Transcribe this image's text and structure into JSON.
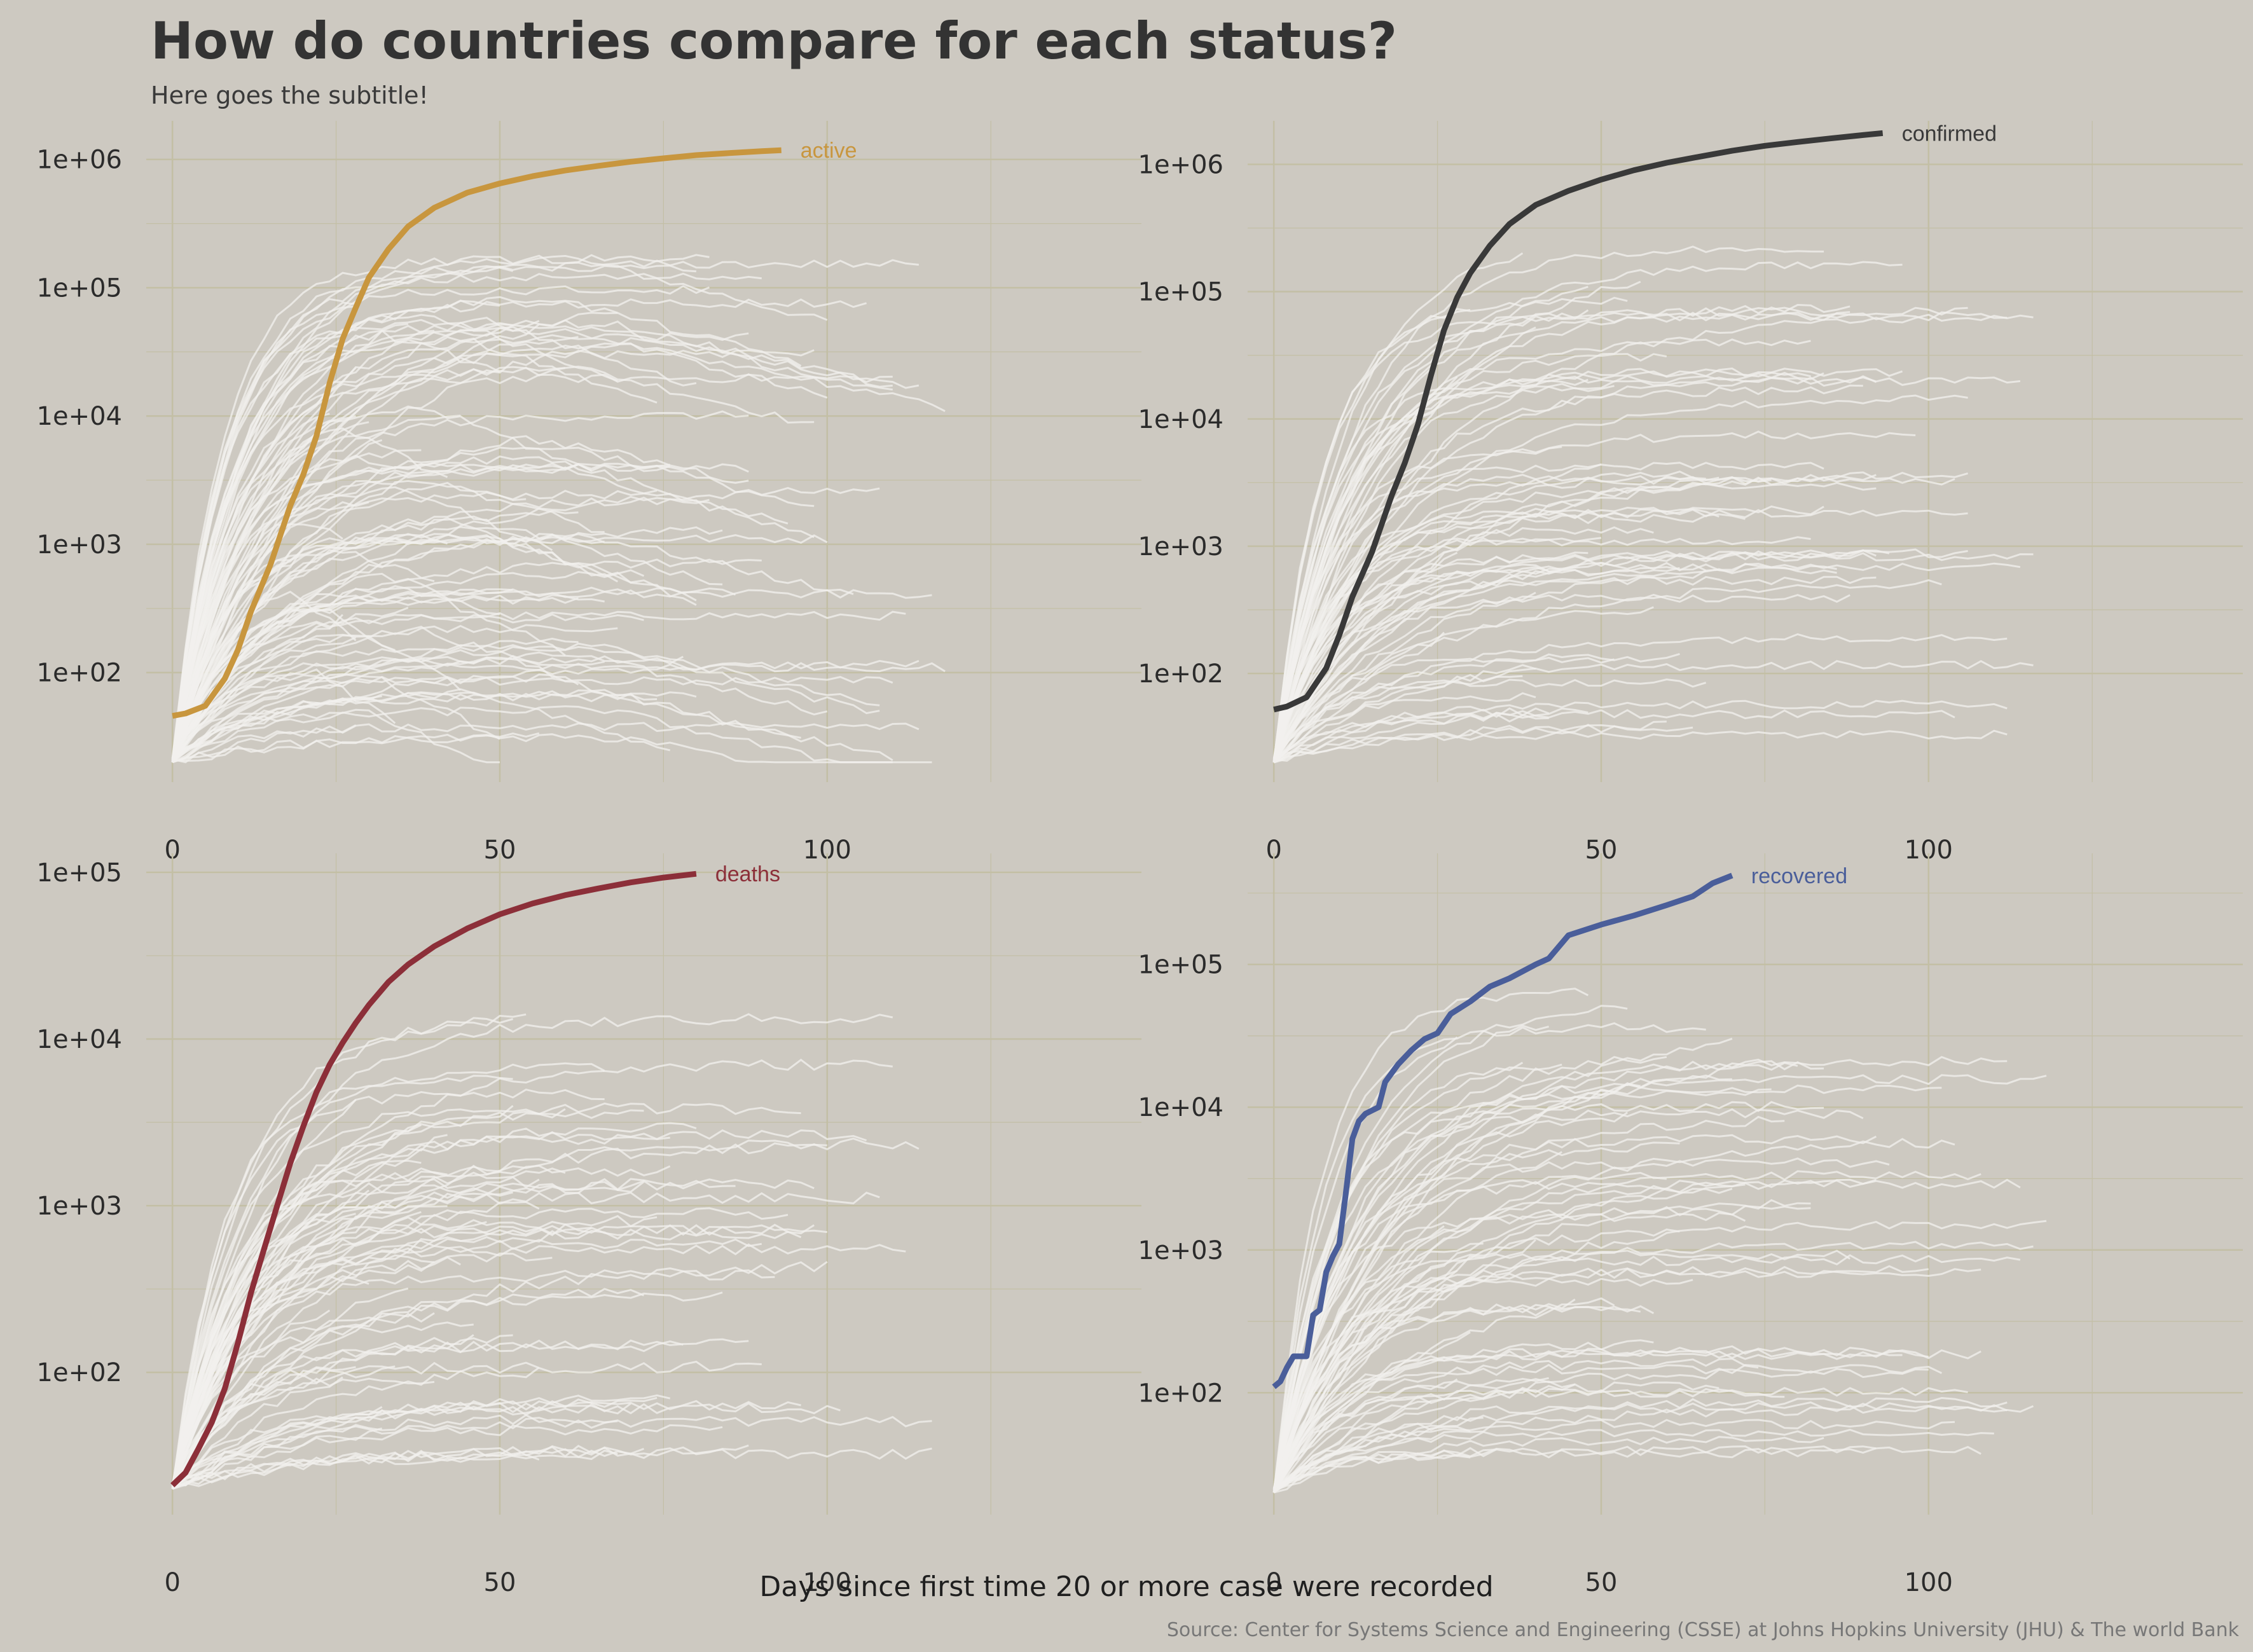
{
  "title": "How do countries compare for each status?",
  "subtitle": "Here goes the subtitle!",
  "xlabel": "Days since first time 20 or more case were recorded",
  "caption": "Source: Center for Systems Science and Engineering (CSSE) at Johns Hopkins University (JHU) & The world Bank",
  "colors": {
    "background": "#cdc9c1",
    "grid": "#c3bfa5",
    "background_lines": "#f2f0ee",
    "active": "#c8963e",
    "confirmed": "#393939",
    "deaths": "#8c2f39",
    "recovered": "#4a5e9a"
  },
  "chart_data": [
    {
      "type": "line",
      "panel": "active",
      "x_ticks": [
        0,
        50,
        100
      ],
      "xlim": [
        -4,
        148
      ],
      "y_scale": "log10",
      "y_ticks": [
        100,
        1000,
        10000,
        100000,
        1000000
      ],
      "y_tick_labels": [
        "1e+02",
        "1e+03",
        "1e+04",
        "1e+05",
        "1e+06"
      ],
      "ylim": [
        14,
        2000000
      ],
      "highlight": {
        "name": "active",
        "color": "#c8963e",
        "x": [
          0,
          2,
          5,
          8,
          10,
          12,
          15,
          18,
          20,
          22,
          24,
          26,
          28,
          30,
          33,
          36,
          40,
          45,
          50,
          55,
          60,
          65,
          70,
          75,
          80,
          85,
          90,
          93
        ],
        "y": [
          46,
          48,
          55,
          90,
          150,
          300,
          700,
          2000,
          3500,
          7000,
          18000,
          40000,
          70000,
          120000,
          200000,
          300000,
          420000,
          550000,
          650000,
          740000,
          820000,
          890000,
          960000,
          1020000,
          1080000,
          1120000,
          1160000,
          1180000
        ]
      }
    },
    {
      "type": "line",
      "panel": "confirmed",
      "x_ticks": [
        0,
        50,
        100
      ],
      "xlim": [
        -4,
        148
      ],
      "y_scale": "log10",
      "y_ticks": [
        100,
        1000,
        10000,
        100000,
        1000000
      ],
      "y_tick_labels": [
        "1e+02",
        "1e+03",
        "1e+04",
        "1e+05",
        "1e+06"
      ],
      "ylim": [
        14,
        2200000
      ],
      "highlight": {
        "name": "confirmed",
        "color": "#393939",
        "x": [
          0,
          2,
          5,
          8,
          10,
          12,
          15,
          18,
          20,
          22,
          24,
          26,
          28,
          30,
          33,
          36,
          40,
          45,
          50,
          55,
          60,
          65,
          70,
          75,
          80,
          85,
          90,
          93
        ],
        "y": [
          52,
          55,
          65,
          110,
          200,
          400,
          900,
          2500,
          4500,
          9000,
          22000,
          50000,
          90000,
          140000,
          230000,
          340000,
          480000,
          620000,
          760000,
          900000,
          1030000,
          1150000,
          1280000,
          1400000,
          1500000,
          1600000,
          1700000,
          1760000
        ]
      }
    },
    {
      "type": "line",
      "panel": "deaths",
      "x_ticks": [
        0,
        50,
        100
      ],
      "xlim": [
        -4,
        148
      ],
      "y_scale": "log10",
      "y_ticks": [
        100,
        1000,
        10000,
        100000
      ],
      "y_tick_labels": [
        "1e+02",
        "1e+03",
        "1e+04",
        "1e+05"
      ],
      "ylim": [
        14,
        130000
      ],
      "highlight": {
        "name": "deaths",
        "color": "#8c2f39",
        "x": [
          0,
          2,
          4,
          6,
          8,
          10,
          12,
          14,
          16,
          18,
          20,
          22,
          24,
          26,
          28,
          30,
          33,
          36,
          40,
          45,
          50,
          55,
          60,
          65,
          70,
          75,
          80
        ],
        "y": [
          21,
          25,
          35,
          50,
          80,
          150,
          300,
          550,
          1000,
          1800,
          3000,
          4800,
          7000,
          9500,
          12500,
          16000,
          22000,
          28000,
          36000,
          46000,
          56000,
          65000,
          73000,
          80000,
          87000,
          93000,
          98000
        ]
      }
    },
    {
      "type": "line",
      "panel": "recovered",
      "x_ticks": [
        0,
        50,
        100
      ],
      "xlim": [
        -4,
        148
      ],
      "y_scale": "log10",
      "y_ticks": [
        100,
        1000,
        10000,
        100000
      ],
      "y_tick_labels": [
        "1e+02",
        "1e+03",
        "1e+04",
        "1e+05"
      ],
      "ylim": [
        14,
        600000
      ],
      "highlight": {
        "name": "recovered",
        "color": "#4a5e9a",
        "x": [
          0,
          1,
          2,
          3,
          5,
          6,
          7,
          8,
          9,
          10,
          11,
          12,
          13,
          14,
          16,
          17,
          19,
          21,
          23,
          25,
          27,
          30,
          33,
          36,
          40,
          42,
          45,
          50,
          55,
          60,
          64,
          67,
          70
        ],
        "y": [
          110,
          120,
          150,
          180,
          180,
          350,
          380,
          700,
          900,
          1100,
          2500,
          6000,
          8000,
          9000,
          10000,
          15000,
          20000,
          25000,
          30000,
          33000,
          45000,
          55000,
          70000,
          80000,
          100000,
          110000,
          160000,
          190000,
          220000,
          260000,
          300000,
          370000,
          420000
        ]
      }
    }
  ]
}
